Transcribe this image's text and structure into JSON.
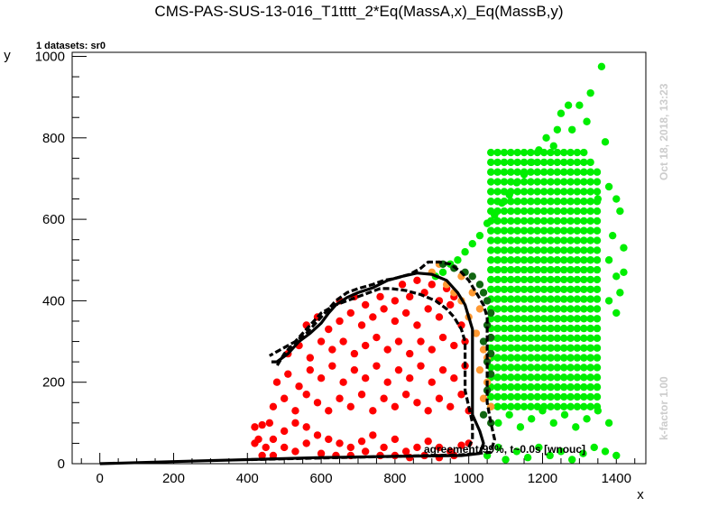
{
  "chart_data": {
    "type": "scatter",
    "title": "CMS-PAS-SUS-13-016_T1tttt_2*Eq(MassA,x)_Eq(MassB,y)",
    "subtitle": "1 datasets: sr0",
    "xlabel": "x",
    "ylabel": "y",
    "xlim": [
      -75,
      1480
    ],
    "ylim": [
      0,
      1010
    ],
    "xticks": [
      0,
      200,
      400,
      600,
      800,
      1000,
      1200,
      1400
    ],
    "yticks": [
      0,
      200,
      400,
      600,
      800,
      1000
    ],
    "xtick_labels": [
      "0",
      "200",
      "400",
      "600",
      "800",
      "1000",
      "1200",
      "1400"
    ],
    "ytick_labels": [
      "0",
      "200",
      "400",
      "600",
      "800",
      "1000"
    ],
    "date_text": "Oct 18, 2018, 13:23",
    "kfactor_text": "k-factor 1.00",
    "agreement_text": "agreement:99%, t~0.0s [wnouc]",
    "colors": {
      "excluded": "#ff0000",
      "allowed": "#00ee00",
      "excluded_mismatch": "#ff9933",
      "allowed_mismatch": "#116611",
      "line": "#000000"
    },
    "series": [
      {
        "color": "excluded",
        "points": [
          [
            420,
            90
          ],
          [
            440,
            95
          ],
          [
            460,
            100
          ],
          [
            430,
            60
          ],
          [
            450,
            40
          ],
          [
            470,
            60
          ],
          [
            500,
            80
          ],
          [
            530,
            100
          ],
          [
            560,
            90
          ],
          [
            590,
            70
          ],
          [
            620,
            60
          ],
          [
            650,
            50
          ],
          [
            680,
            40
          ],
          [
            710,
            55
          ],
          [
            740,
            70
          ],
          [
            770,
            40
          ],
          [
            800,
            60
          ],
          [
            830,
            30
          ],
          [
            860,
            40
          ],
          [
            890,
            55
          ],
          [
            920,
            40
          ],
          [
            950,
            30
          ],
          [
            980,
            45
          ],
          [
            1000,
            50
          ],
          [
            420,
            50
          ],
          [
            440,
            20
          ],
          [
            470,
            20
          ],
          [
            500,
            40
          ],
          [
            530,
            30
          ],
          [
            560,
            50
          ],
          [
            600,
            25
          ],
          [
            640,
            20
          ],
          [
            680,
            20
          ],
          [
            720,
            30
          ],
          [
            760,
            20
          ],
          [
            800,
            20
          ],
          [
            840,
            15
          ],
          [
            880,
            20
          ],
          [
            920,
            15
          ],
          [
            960,
            20
          ],
          [
            470,
            140
          ],
          [
            500,
            160
          ],
          [
            530,
            130
          ],
          [
            560,
            170
          ],
          [
            590,
            150
          ],
          [
            620,
            130
          ],
          [
            650,
            160
          ],
          [
            680,
            140
          ],
          [
            710,
            170
          ],
          [
            740,
            130
          ],
          [
            770,
            160
          ],
          [
            800,
            140
          ],
          [
            830,
            170
          ],
          [
            860,
            150
          ],
          [
            890,
            130
          ],
          [
            920,
            160
          ],
          [
            950,
            140
          ],
          [
            980,
            170
          ],
          [
            1000,
            130
          ],
          [
            480,
            200
          ],
          [
            510,
            220
          ],
          [
            540,
            190
          ],
          [
            570,
            230
          ],
          [
            600,
            210
          ],
          [
            630,
            240
          ],
          [
            660,
            200
          ],
          [
            690,
            230
          ],
          [
            720,
            210
          ],
          [
            750,
            240
          ],
          [
            780,
            200
          ],
          [
            810,
            230
          ],
          [
            840,
            210
          ],
          [
            870,
            240
          ],
          [
            900,
            200
          ],
          [
            930,
            230
          ],
          [
            960,
            210
          ],
          [
            990,
            240
          ],
          [
            510,
            270
          ],
          [
            540,
            290
          ],
          [
            570,
            260
          ],
          [
            600,
            300
          ],
          [
            630,
            280
          ],
          [
            660,
            300
          ],
          [
            690,
            270
          ],
          [
            720,
            290
          ],
          [
            750,
            310
          ],
          [
            780,
            280
          ],
          [
            810,
            300
          ],
          [
            840,
            270
          ],
          [
            870,
            300
          ],
          [
            900,
            280
          ],
          [
            930,
            310
          ],
          [
            960,
            290
          ],
          [
            990,
            300
          ],
          [
            560,
            340
          ],
          [
            590,
            360
          ],
          [
            620,
            330
          ],
          [
            650,
            350
          ],
          [
            680,
            370
          ],
          [
            710,
            340
          ],
          [
            740,
            360
          ],
          [
            770,
            380
          ],
          [
            800,
            350
          ],
          [
            830,
            370
          ],
          [
            860,
            340
          ],
          [
            890,
            380
          ],
          [
            920,
            360
          ],
          [
            950,
            390
          ],
          [
            980,
            340
          ],
          [
            650,
            400
          ],
          [
            690,
            410
          ],
          [
            720,
            390
          ],
          [
            760,
            410
          ],
          [
            800,
            400
          ],
          [
            840,
            410
          ],
          [
            880,
            420
          ],
          [
            920,
            400
          ],
          [
            960,
            410
          ],
          [
            820,
            440
          ],
          [
            860,
            450
          ],
          [
            900,
            440
          ],
          [
            940,
            430
          ]
        ]
      },
      {
        "color": "allowed",
        "points": [
          [
            1360,
            975
          ],
          [
            1330,
            910
          ],
          [
            1370,
            790
          ],
          [
            1300,
            880
          ],
          [
            1320,
            840
          ],
          [
            1270,
            880
          ],
          [
            1250,
            860
          ],
          [
            1240,
            820
          ],
          [
            1280,
            820
          ],
          [
            1210,
            800
          ],
          [
            1190,
            770
          ],
          [
            1230,
            780
          ],
          [
            1170,
            740
          ],
          [
            1150,
            710
          ],
          [
            1130,
            690
          ],
          [
            1110,
            660
          ],
          [
            1090,
            640
          ],
          [
            1070,
            610
          ],
          [
            1050,
            590
          ],
          [
            1030,
            560
          ],
          [
            1010,
            540
          ],
          [
            990,
            520
          ],
          [
            970,
            500
          ],
          [
            950,
            490
          ],
          [
            930,
            470
          ],
          [
            910,
            460
          ],
          [
            1400,
            650
          ],
          [
            1410,
            620
          ],
          [
            1390,
            560
          ],
          [
            1420,
            530
          ],
          [
            1380,
            500
          ],
          [
            1400,
            460
          ],
          [
            1410,
            420
          ],
          [
            1380,
            400
          ],
          [
            1400,
            370
          ],
          [
            1420,
            470
          ],
          [
            1350,
            650
          ],
          [
            1380,
            680
          ],
          [
            1050,
            20
          ],
          [
            1080,
            40
          ],
          [
            1100,
            10
          ],
          [
            1130,
            30
          ],
          [
            1160,
            15
          ],
          [
            1190,
            40
          ],
          [
            1220,
            20
          ],
          [
            1250,
            30
          ],
          [
            1280,
            10
          ],
          [
            1310,
            25
          ],
          [
            1340,
            40
          ],
          [
            1370,
            30
          ],
          [
            1400,
            20
          ],
          [
            1080,
            100
          ],
          [
            1110,
            120
          ],
          [
            1140,
            90
          ],
          [
            1170,
            110
          ],
          [
            1200,
            130
          ],
          [
            1230,
            100
          ],
          [
            1260,
            120
          ],
          [
            1290,
            90
          ],
          [
            1320,
            110
          ],
          [
            1350,
            130
          ],
          [
            1380,
            100
          ]
        ],
        "grid": {
          "x0": 1060,
          "x1": 1360,
          "dx": 18,
          "y0": 140,
          "y1": 780,
          "dy": 24,
          "xmin_slope": 0.55
        }
      },
      {
        "color": "excluded_mismatch",
        "points": [
          [
            900,
            470
          ],
          [
            940,
            440
          ],
          [
            960,
            420
          ],
          [
            980,
            400
          ],
          [
            1000,
            360
          ],
          [
            1020,
            320
          ],
          [
            1040,
            280
          ],
          [
            1030,
            230
          ],
          [
            1050,
            200
          ],
          [
            1040,
            160
          ],
          [
            1060,
            140
          ],
          [
            1050,
            260
          ],
          [
            1030,
            380
          ],
          [
            1010,
            420
          ],
          [
            980,
            460
          ],
          [
            920,
            490
          ]
        ]
      },
      {
        "color": "allowed_mismatch",
        "points": [
          [
            930,
            490
          ],
          [
            960,
            480
          ],
          [
            990,
            470
          ],
          [
            1010,
            460
          ],
          [
            1030,
            440
          ],
          [
            1040,
            420
          ],
          [
            1050,
            400
          ],
          [
            1060,
            370
          ],
          [
            1050,
            340
          ],
          [
            1060,
            310
          ],
          [
            1040,
            300
          ],
          [
            1060,
            270
          ],
          [
            1050,
            250
          ],
          [
            1060,
            220
          ],
          [
            1050,
            180
          ],
          [
            1040,
            120
          ],
          [
            1060,
            100
          ]
        ]
      }
    ],
    "lines": [
      {
        "style": "solid",
        "points": [
          [
            0,
            0
          ],
          [
            200,
            5
          ],
          [
            400,
            10
          ],
          [
            600,
            15
          ],
          [
            800,
            18
          ],
          [
            980,
            20
          ],
          [
            1030,
            25
          ],
          [
            1040,
            50
          ],
          [
            1030,
            80
          ],
          [
            1010,
            120
          ],
          [
            1010,
            180
          ],
          [
            1010,
            250
          ],
          [
            1010,
            330
          ],
          [
            1000,
            360
          ],
          [
            990,
            390
          ],
          [
            970,
            420
          ],
          [
            940,
            450
          ],
          [
            900,
            465
          ],
          [
            860,
            468
          ],
          [
            820,
            460
          ],
          [
            780,
            450
          ],
          [
            740,
            432
          ],
          [
            700,
            420
          ],
          [
            670,
            408
          ],
          [
            640,
            390
          ],
          [
            620,
            370
          ],
          [
            600,
            345
          ],
          [
            570,
            320
          ],
          [
            540,
            300
          ],
          [
            510,
            270
          ],
          [
            480,
            250
          ],
          [
            465,
            250
          ]
        ]
      },
      {
        "style": "dashed",
        "points": [
          [
            410,
            10
          ],
          [
            600,
            14
          ],
          [
            800,
            18
          ],
          [
            980,
            22
          ],
          [
            1060,
            28
          ],
          [
            1070,
            60
          ],
          [
            1060,
            100
          ],
          [
            1050,
            150
          ],
          [
            1050,
            200
          ],
          [
            1050,
            260
          ],
          [
            1050,
            300
          ],
          [
            1050,
            330
          ],
          [
            1050,
            360
          ],
          [
            1040,
            390
          ],
          [
            1020,
            420
          ],
          [
            1000,
            450
          ],
          [
            980,
            470
          ],
          [
            950,
            490
          ],
          [
            920,
            495
          ],
          [
            890,
            495
          ],
          [
            870,
            480
          ],
          [
            840,
            465
          ],
          [
            800,
            455
          ],
          [
            770,
            450
          ],
          [
            740,
            440
          ],
          [
            700,
            430
          ],
          [
            670,
            420
          ],
          [
            640,
            400
          ],
          [
            620,
            380
          ],
          [
            600,
            360
          ],
          [
            580,
            340
          ],
          [
            560,
            320
          ],
          [
            530,
            300
          ],
          [
            500,
            285
          ],
          [
            480,
            275
          ],
          [
            460,
            265
          ]
        ]
      },
      {
        "style": "dashed",
        "points": [
          [
            1000,
            40
          ],
          [
            1010,
            60
          ],
          [
            1010,
            100
          ],
          [
            1000,
            140
          ],
          [
            990,
            180
          ],
          [
            990,
            220
          ],
          [
            990,
            260
          ],
          [
            990,
            300
          ],
          [
            980,
            330
          ],
          [
            960,
            360
          ],
          [
            940,
            380
          ],
          [
            910,
            400
          ],
          [
            870,
            415
          ],
          [
            830,
            425
          ],
          [
            790,
            430
          ],
          [
            760,
            430
          ],
          [
            730,
            420
          ],
          [
            700,
            410
          ],
          [
            670,
            400
          ],
          [
            640,
            390
          ],
          [
            620,
            380
          ],
          [
            600,
            370
          ],
          [
            580,
            350
          ],
          [
            560,
            330
          ],
          [
            540,
            310
          ],
          [
            520,
            290
          ],
          [
            500,
            270
          ],
          [
            480,
            240
          ]
        ]
      }
    ]
  }
}
